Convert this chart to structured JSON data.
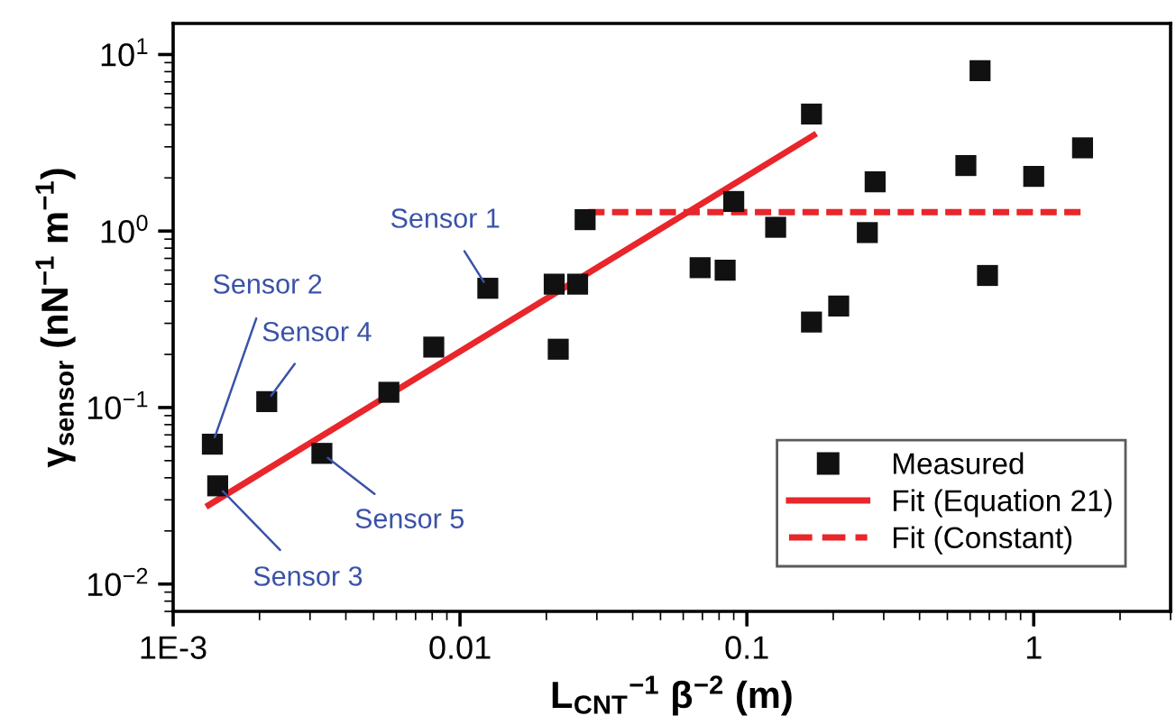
{
  "chart_data": {
    "type": "scatter",
    "xlabel": "L$_{CNT}$$^{−1}$ β$^{−2}$ (m)",
    "ylabel": "γ$_{sensor}$ (nN$^{−1}$ m$^{−1}$)",
    "log": "xy",
    "xlim": [
      0.001,
      3
    ],
    "ylim": [
      0.007,
      15
    ],
    "xticks": [
      {
        "value": 0.001,
        "label": "1E-3"
      },
      0.01,
      0.1,
      1
    ],
    "yticks": [
      {
        "value": 0.01,
        "label": "10$^{−2}$"
      },
      {
        "value": 0.1,
        "label": "10$^{−1}$"
      },
      {
        "value": 1,
        "label": "10$^{0}$"
      },
      {
        "value": 10,
        "label": "10$^{1}$"
      }
    ],
    "grid": false,
    "legend": "bottom right",
    "series": [
      {
        "name": "Measured",
        "marker": "square",
        "color": "#111111",
        "x": [
          0.00137,
          0.00143,
          0.00212,
          0.0033,
          0.00565,
          0.0081,
          0.0125,
          0.0213,
          0.022,
          0.0257,
          0.0273,
          0.0687,
          0.084,
          0.09,
          0.126,
          0.168,
          0.168,
          0.209,
          0.263,
          0.28,
          0.58,
          0.65,
          0.69,
          1.0,
          1.48
        ],
        "values": [
          0.062,
          0.036,
          0.108,
          0.055,
          0.122,
          0.22,
          0.474,
          0.5,
          0.214,
          0.5,
          1.16,
          0.62,
          0.6,
          1.47,
          1.05,
          4.6,
          0.305,
          0.376,
          0.98,
          1.9,
          2.35,
          8.1,
          0.56,
          2.04,
          2.96
        ]
      },
      {
        "name": "Fit (Equation 21)",
        "type": "line",
        "line_style": "solid",
        "color": "#e8262b",
        "x": [
          0.00133,
          0.171
        ],
        "values": [
          0.028,
          3.49
        ]
      },
      {
        "name": "Fit (Constant)",
        "type": "line",
        "line_style": "dashed",
        "color": "#e8262b",
        "x": [
          0.028,
          1.5
        ],
        "values": [
          1.28,
          1.28
        ]
      }
    ],
    "annotations": [
      {
        "text": "Sensor 1",
        "x": 0.0125,
        "y": 0.474
      },
      {
        "text": "Sensor 2",
        "x": 0.00137,
        "y": 0.062
      },
      {
        "text": "Sensor 3",
        "x": 0.00143,
        "y": 0.036
      },
      {
        "text": "Sensor 4",
        "x": 0.00212,
        "y": 0.108
      },
      {
        "text": "Sensor 5",
        "x": 0.0033,
        "y": 0.055
      }
    ]
  }
}
